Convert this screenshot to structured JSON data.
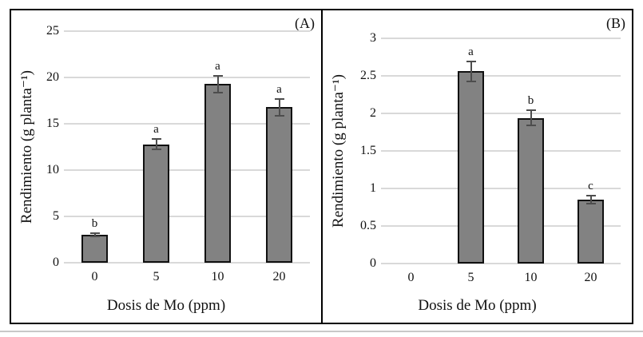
{
  "figure": {
    "bottom_rule_color": "#c8c8c8",
    "panel_border_color": "#000000",
    "background_color": "#ffffff"
  },
  "chart_data": [
    {
      "type": "bar",
      "panel_label": "(A)",
      "xlabel": "Dosis de Mo (ppm)",
      "ylabel": "Rendimiento (g planta⁻¹)",
      "categories": [
        "0",
        "5",
        "10",
        "20"
      ],
      "values": [
        3.0,
        12.8,
        19.3,
        16.8
      ],
      "errors": [
        0.15,
        0.6,
        0.9,
        0.9
      ],
      "sig_letters": [
        "b",
        "a",
        "a",
        "a"
      ],
      "ylim": [
        0,
        25
      ],
      "yticks": [
        "0",
        "5",
        "10",
        "15",
        "20",
        "25"
      ],
      "grid": true,
      "legend": "none",
      "bar_color": "#828282",
      "bar_border_color": "#111111",
      "error_bar_color": "#4d4d4d",
      "gridline_color": "#d9d9d9"
    },
    {
      "type": "bar",
      "panel_label": "(B)",
      "xlabel": "Dosis de Mo (ppm)",
      "ylabel": "Rendimiento (g planta⁻¹)",
      "categories": [
        "0",
        "5",
        "10",
        "20"
      ],
      "values": [
        0,
        2.56,
        1.94,
        0.85
      ],
      "errors": [
        0,
        0.13,
        0.1,
        0.05
      ],
      "sig_letters": [
        "",
        "a",
        "b",
        "c"
      ],
      "ylim": [
        0,
        3
      ],
      "yticks": [
        "0",
        "0.5",
        "1",
        "1.5",
        "2",
        "2.5",
        "3"
      ],
      "grid": true,
      "legend": "none",
      "bar_color": "#828282",
      "bar_border_color": "#111111",
      "error_bar_color": "#4d4d4d",
      "gridline_color": "#d9d9d9"
    }
  ]
}
